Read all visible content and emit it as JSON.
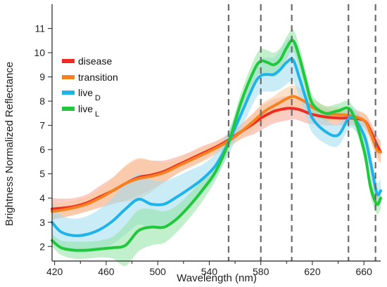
{
  "chart_data": {
    "type": "line",
    "title": "",
    "xlabel": "Wavelength (nm)",
    "ylabel": "Brightness Normalized Reflectance",
    "xlim": [
      418,
      673
    ],
    "ylim": [
      1.4,
      12.0
    ],
    "x_ticks": [
      420,
      460,
      500,
      540,
      580,
      620,
      660
    ],
    "y_ticks": [
      2,
      3,
      4,
      5,
      6,
      7,
      8,
      9,
      10,
      11
    ],
    "grid": false,
    "legend_position": "top-left",
    "vertical_reference_lines": [
      555,
      580,
      604,
      648,
      669
    ],
    "x": [
      418,
      425,
      435,
      445,
      455,
      465,
      475,
      485,
      495,
      505,
      515,
      525,
      535,
      545,
      555,
      565,
      575,
      580,
      585,
      590,
      595,
      600,
      605,
      610,
      615,
      620,
      630,
      640,
      650,
      660,
      665,
      670,
      673
    ],
    "series": [
      {
        "name": "disease",
        "sub": "",
        "color": "#ee2b24",
        "band_color": "#f7a48f",
        "values": [
          3.55,
          3.58,
          3.65,
          3.8,
          4.05,
          4.3,
          4.6,
          4.85,
          4.95,
          5.1,
          5.35,
          5.6,
          5.85,
          6.1,
          6.4,
          6.75,
          7.1,
          7.3,
          7.45,
          7.58,
          7.65,
          7.7,
          7.7,
          7.65,
          7.55,
          7.45,
          7.35,
          7.3,
          7.3,
          7.2,
          6.8,
          6.2,
          5.9
        ],
        "band": [
          0.45,
          0.4,
          0.35,
          0.35,
          0.45,
          0.55,
          0.7,
          0.75,
          0.6,
          0.45,
          0.35,
          0.3,
          0.3,
          0.25,
          0.25,
          0.3,
          0.45,
          0.5,
          0.5,
          0.5,
          0.5,
          0.5,
          0.45,
          0.45,
          0.45,
          0.4,
          0.35,
          0.3,
          0.3,
          0.3,
          0.35,
          0.4,
          0.45
        ]
      },
      {
        "name": "transition",
        "sub": "",
        "color": "#f58220",
        "band_color": "#f9c89c",
        "values": [
          3.45,
          3.5,
          3.6,
          3.75,
          4.0,
          4.3,
          4.6,
          4.8,
          4.9,
          5.05,
          5.3,
          5.55,
          5.8,
          6.05,
          6.35,
          6.75,
          7.2,
          7.45,
          7.65,
          7.8,
          7.95,
          8.1,
          8.2,
          8.1,
          7.95,
          7.75,
          7.5,
          7.45,
          7.4,
          7.2,
          6.7,
          6.0,
          5.9
        ],
        "band": [
          0.35,
          0.3,
          0.3,
          0.3,
          0.35,
          0.5,
          0.75,
          0.85,
          0.65,
          0.4,
          0.3,
          0.3,
          0.3,
          0.25,
          0.25,
          0.3,
          0.35,
          0.4,
          0.4,
          0.4,
          0.45,
          0.45,
          0.45,
          0.45,
          0.4,
          0.35,
          0.3,
          0.3,
          0.3,
          0.3,
          0.35,
          0.4,
          0.45
        ]
      },
      {
        "name": "live",
        "sub": "D",
        "color": "#1fb3ea",
        "band_color": "#9edcf1",
        "values": [
          3.0,
          2.6,
          2.45,
          2.5,
          2.7,
          3.05,
          3.55,
          3.95,
          3.75,
          3.75,
          4.05,
          4.4,
          4.8,
          5.35,
          6.3,
          7.5,
          8.7,
          9.05,
          9.1,
          9.1,
          9.3,
          9.6,
          9.7,
          8.95,
          8.1,
          7.3,
          6.75,
          6.6,
          7.35,
          6.6,
          5.5,
          4.2,
          4.3
        ],
        "band": [
          0.8,
          0.7,
          0.7,
          0.75,
          0.85,
          0.95,
          1.05,
          1.05,
          1.0,
          0.95,
          0.85,
          0.75,
          0.6,
          0.5,
          0.5,
          0.6,
          0.7,
          0.7,
          0.7,
          0.7,
          0.8,
          0.9,
          0.9,
          0.8,
          0.7,
          0.6,
          0.5,
          0.45,
          0.45,
          0.5,
          0.5,
          0.5,
          0.5
        ]
      },
      {
        "name": "live",
        "sub": "L",
        "color": "#22c83c",
        "band_color": "#8fe3a3",
        "values": [
          2.25,
          1.95,
          1.85,
          1.85,
          1.9,
          1.95,
          2.05,
          2.65,
          2.8,
          2.8,
          3.15,
          3.7,
          4.35,
          5.1,
          6.3,
          8.0,
          9.3,
          9.65,
          9.6,
          9.5,
          9.7,
          10.2,
          10.5,
          9.8,
          8.8,
          7.9,
          7.5,
          7.6,
          7.6,
          6.0,
          4.5,
          3.75,
          4.0
        ],
        "band": [
          0.25,
          0.3,
          0.35,
          0.35,
          0.35,
          0.45,
          0.85,
          0.85,
          0.75,
          0.65,
          0.55,
          0.5,
          0.45,
          0.35,
          0.35,
          0.4,
          0.45,
          0.5,
          0.5,
          0.5,
          0.5,
          0.45,
          0.45,
          0.45,
          0.4,
          0.35,
          0.3,
          0.3,
          0.3,
          0.35,
          0.4,
          0.4,
          0.45
        ]
      }
    ]
  }
}
